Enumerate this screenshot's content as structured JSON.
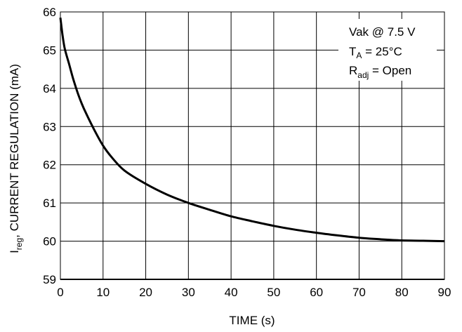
{
  "chart_data": {
    "type": "line",
    "title": "",
    "xlabel": "TIME (s)",
    "ylabel": {
      "main": "I",
      "sub": "reg",
      "rest": ", CURRENT REGULATION (mA)"
    },
    "xlim": [
      0,
      90
    ],
    "ylim": [
      59,
      66
    ],
    "xticks": [
      "0",
      "10",
      "20",
      "30",
      "40",
      "50",
      "60",
      "70",
      "80",
      "90"
    ],
    "yticks": [
      "59",
      "60",
      "61",
      "62",
      "63",
      "64",
      "65",
      "66"
    ],
    "grid": true,
    "annotations": {
      "line1": "Vak @ 7.5 V",
      "line2": {
        "main": "T",
        "sub": "A",
        "rest": " = 25°C"
      },
      "line3": {
        "main": "R",
        "sub": "adj",
        "rest": " = Open"
      }
    },
    "series": [
      {
        "x": [
          0,
          0.5,
          1,
          2,
          3,
          4,
          5,
          6,
          8,
          10,
          12,
          15,
          20,
          25,
          30,
          35,
          40,
          45,
          50,
          55,
          60,
          65,
          70,
          75,
          80,
          85,
          90
        ],
        "y": [
          65.85,
          65.4,
          65.05,
          64.65,
          64.25,
          63.9,
          63.6,
          63.35,
          62.9,
          62.5,
          62.2,
          61.85,
          61.5,
          61.22,
          61.0,
          60.82,
          60.65,
          60.52,
          60.4,
          60.3,
          60.22,
          60.15,
          60.09,
          60.05,
          60.02,
          60.01,
          60.0
        ]
      }
    ]
  }
}
